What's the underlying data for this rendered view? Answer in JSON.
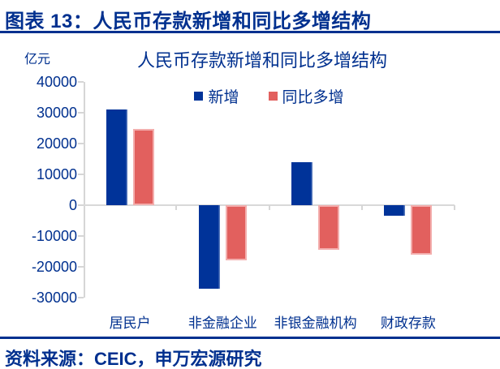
{
  "page": {
    "header_title": "图表 13：人民币存款新增和同比多增结构",
    "source_note": "资料来源：CEIC，申万宏源研究"
  },
  "colors": {
    "navy_text": "#00308F",
    "rule_navy": "#00308F",
    "axis_gray": "#D6D6D6",
    "bar_new_blue": "#003399",
    "bar_yoy_red": "#E2605E",
    "bar_yoy_border": "#F3AEAD"
  },
  "chart_data": {
    "type": "bar",
    "title": "人民币存款新增和同比多增结构",
    "unit_label": "亿元",
    "xlabel": "",
    "ylabel": "亿元",
    "categories": [
      "居民户",
      "非金融企业",
      "非银金融机构",
      "财政存款"
    ],
    "series": [
      {
        "name": "新增",
        "color": "#003399",
        "values": [
          31000,
          -27000,
          14000,
          -3500
        ]
      },
      {
        "name": "同比多增",
        "color": "#E2605E",
        "values": [
          24800,
          -17800,
          -14500,
          -16000
        ]
      }
    ],
    "ylim": [
      -30000,
      40000
    ],
    "ytick_step": 10000,
    "grid": false,
    "legend_position": "top-center"
  }
}
